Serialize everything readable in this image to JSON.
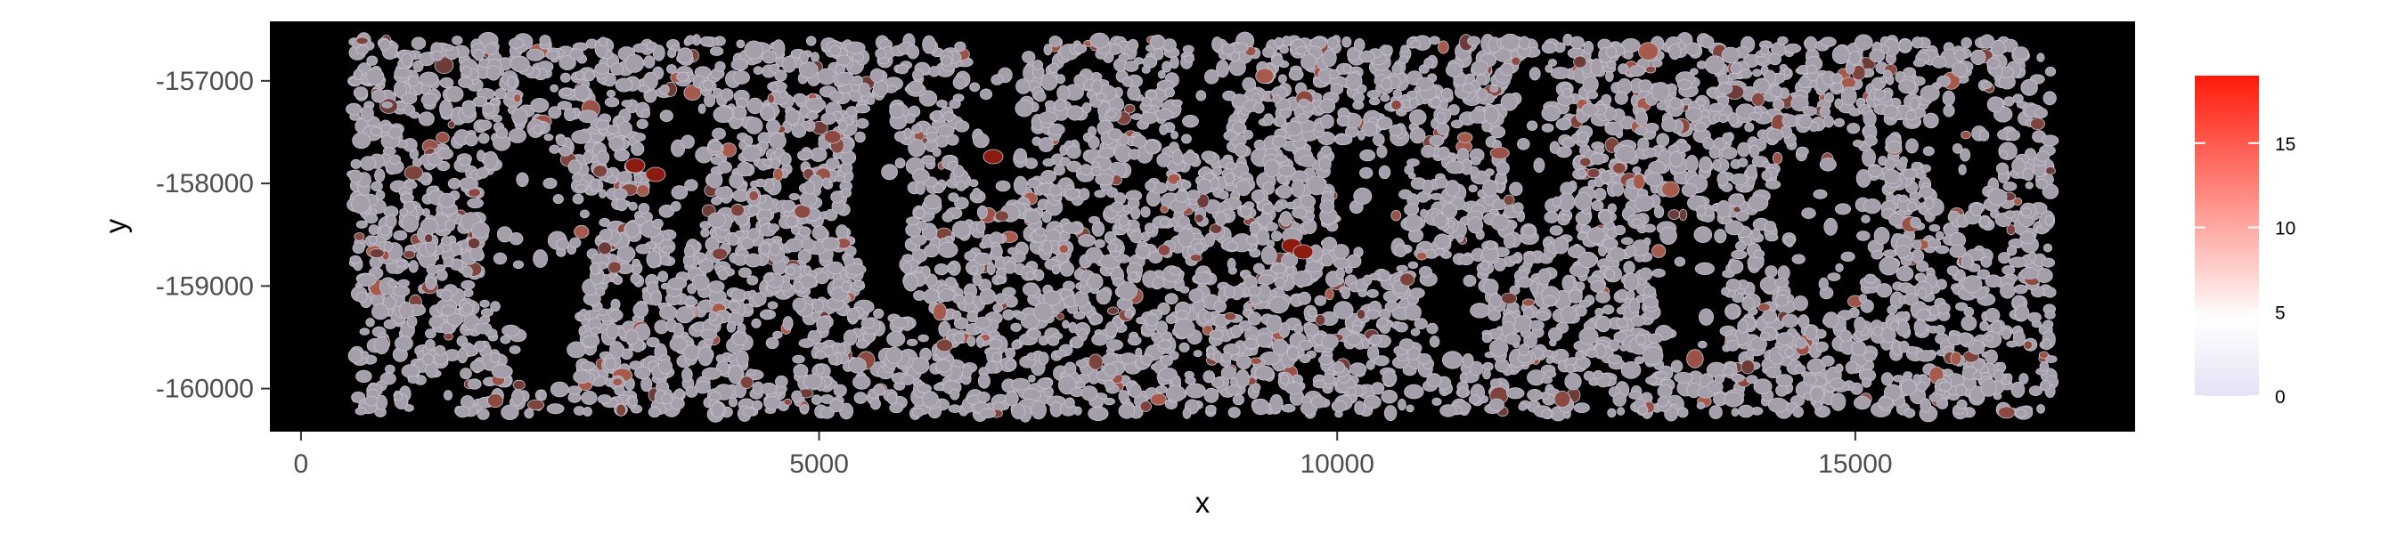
{
  "chart_data": {
    "type": "scatter",
    "title": "",
    "xlabel": "x",
    "ylabel": "y",
    "xlim": [
      -300,
      17700
    ],
    "ylim": [
      -160420,
      -156420
    ],
    "x_ticks": [
      0,
      5000,
      10000,
      15000
    ],
    "x_tick_labels": [
      "0",
      "5000",
      "10000",
      "15000"
    ],
    "y_ticks": [
      -157000,
      -158000,
      -159000,
      -160000
    ],
    "y_tick_labels": [
      "-157000",
      "-158000",
      "-159000",
      "-160000"
    ],
    "data_extent": {
      "x": [
        500,
        16900
      ],
      "y": [
        -160250,
        -156600
      ]
    },
    "panel_background": "#000000",
    "cell_fill_low": "#a49fab",
    "cell_border": "#c8c3cf",
    "grid": false,
    "legend": {
      "placement": "right",
      "type": "colorbar",
      "limits": [
        0,
        19
      ],
      "ticks": [
        0,
        5,
        10,
        15
      ],
      "tick_labels": [
        "0",
        "5",
        "10",
        "15"
      ],
      "colors": {
        "low": "#e6e1f5",
        "mid": "#ffffff",
        "high": "#ff1a0a"
      }
    },
    "notes": "Spatial cell segmentation map; each polygon is a cell colored by a feature value (mostly near 0, scattered cells up to ~18)."
  }
}
